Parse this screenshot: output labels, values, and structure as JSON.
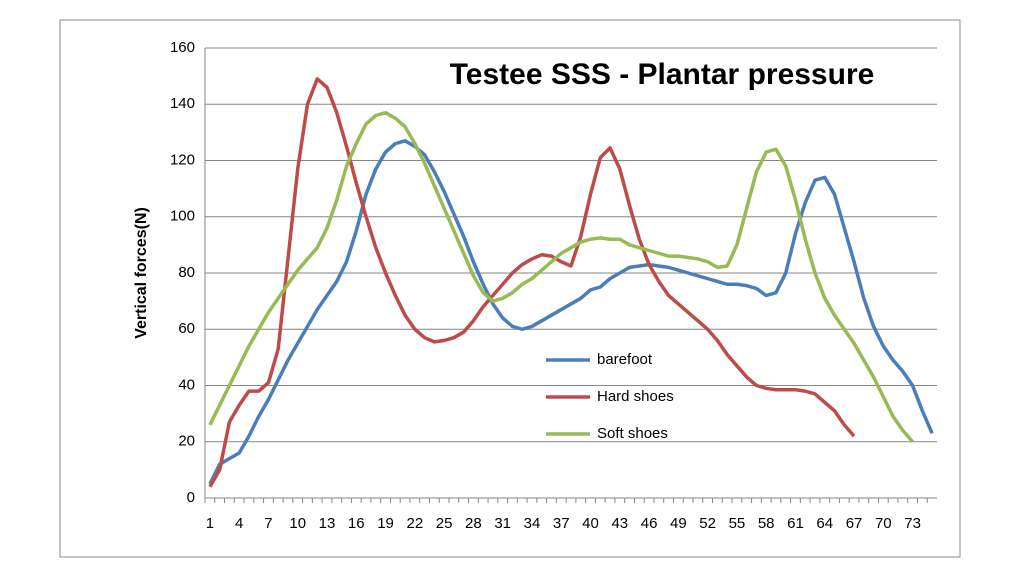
{
  "chart_data": {
    "type": "line",
    "title": "Testee SSS - Plantar pressure",
    "y_label": "Vertical forces(N)",
    "categories": [
      1,
      null,
      null,
      4,
      null,
      null,
      7,
      null,
      null,
      10,
      null,
      null,
      13,
      null,
      null,
      16,
      null,
      null,
      19,
      null,
      null,
      22,
      null,
      null,
      25,
      null,
      null,
      28,
      null,
      null,
      31,
      null,
      null,
      34,
      null,
      null,
      37,
      null,
      null,
      40,
      null,
      null,
      43,
      null,
      null,
      46,
      null,
      null,
      49,
      null,
      null,
      52,
      null,
      null,
      55,
      null,
      null,
      58,
      null,
      null,
      61,
      null,
      null,
      64,
      null,
      null,
      67,
      null,
      null,
      70,
      null,
      null,
      73,
      null,
      null
    ],
    "series": [
      {
        "name": "barefoot",
        "color": "#4a7ebb",
        "values": [
          5,
          12,
          14,
          16,
          22,
          29,
          35,
          42,
          49,
          55,
          61,
          67,
          72,
          77,
          84,
          95,
          108,
          117,
          123,
          126,
          127,
          125,
          122,
          116,
          109,
          101,
          93,
          84,
          76,
          69,
          64,
          61,
          60,
          61,
          63,
          65,
          67,
          69,
          71,
          74,
          75,
          78,
          80,
          82,
          82.5,
          83,
          82.5,
          82,
          81,
          80,
          79,
          78,
          77,
          76,
          76,
          75.5,
          74.5,
          72,
          73,
          80,
          94,
          105,
          113,
          114,
          108,
          96,
          84,
          71,
          61,
          54,
          49,
          45,
          40,
          31,
          23
        ]
      },
      {
        "name": "Hard shoes",
        "color": "#be4b48",
        "values": [
          4,
          10,
          27,
          33,
          38,
          38,
          41,
          53,
          85,
          117,
          140,
          149,
          146,
          137,
          125,
          112,
          100,
          89,
          80,
          72,
          65,
          60,
          57,
          55.5,
          56,
          57,
          59,
          63,
          68,
          72,
          76,
          80,
          83,
          85,
          86.5,
          86,
          84,
          82.5,
          93,
          108,
          121,
          124.5,
          117,
          104,
          92,
          83,
          77,
          72,
          69,
          66,
          63,
          60,
          56,
          51,
          47,
          43,
          40,
          39,
          38.5,
          38.5,
          38.5,
          38,
          37,
          34,
          31,
          26,
          22,
          null,
          null,
          null,
          null,
          null,
          null,
          null,
          null
        ]
      },
      {
        "name": "Soft shoes",
        "color": "#98b954",
        "values": [
          26,
          33,
          40,
          47,
          54,
          60,
          66,
          71,
          76,
          81,
          85,
          89,
          96,
          106,
          118,
          126,
          133,
          136,
          137,
          135,
          132,
          126,
          119,
          111,
          103,
          95,
          87,
          79,
          73,
          70,
          71,
          73,
          76,
          78,
          81,
          84,
          87,
          89,
          91,
          92,
          92.5,
          92,
          92,
          90,
          89,
          88,
          87,
          86,
          86,
          85.5,
          85,
          84,
          82,
          82.5,
          90,
          103,
          116,
          123,
          124,
          118,
          106,
          92,
          80,
          71,
          65,
          60,
          55,
          49,
          43,
          36,
          29,
          24,
          20,
          null,
          null
        ]
      }
    ],
    "ylim": [
      0,
      160
    ],
    "yticks": [
      0,
      20,
      40,
      60,
      80,
      100,
      120,
      140,
      160
    ],
    "grid": true
  }
}
